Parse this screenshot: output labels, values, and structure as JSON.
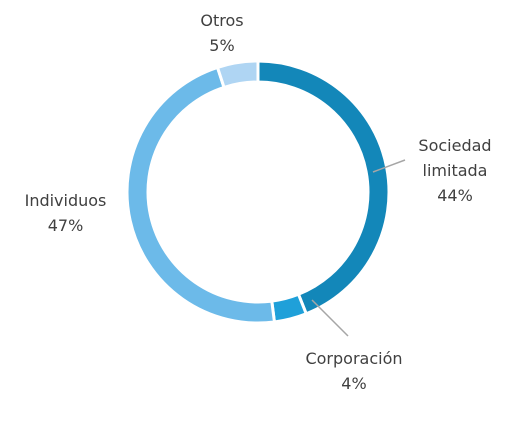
{
  "chart_data": {
    "type": "donut",
    "categories": [
      "Sociedad limitada",
      "Corporación",
      "Individuos",
      "Otros"
    ],
    "values": [
      44,
      4,
      47,
      5
    ],
    "value_labels": [
      "44%",
      "4%",
      "47%",
      "5%"
    ],
    "colors": [
      "#1387b9",
      "#1fa0d9",
      "#6cbae9",
      "#afd5f3"
    ]
  }
}
